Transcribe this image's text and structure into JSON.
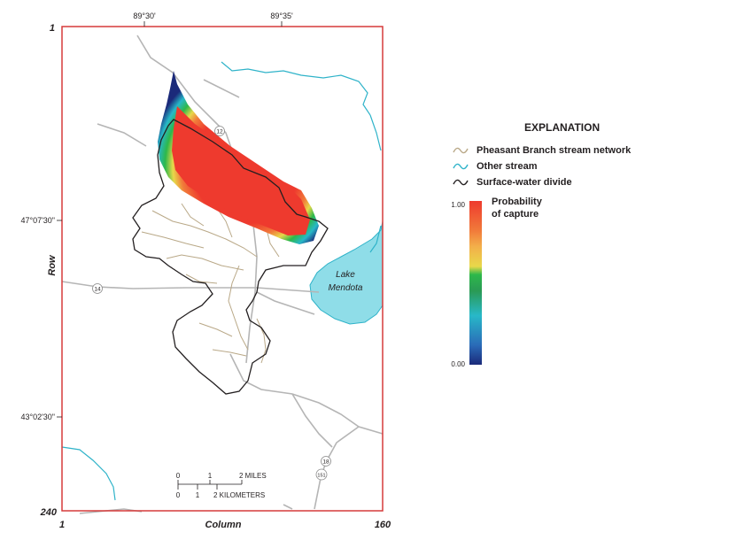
{
  "map": {
    "top_coords": [
      "89°30'",
      "89°35'"
    ],
    "left_coords": [
      "47°07'30\"",
      "43°02'30\""
    ],
    "row_label": "Row",
    "column_label": "Column",
    "row_start": "1",
    "row_end": "240",
    "col_start": "1",
    "col_end": "160",
    "lake_name_line1": "Lake",
    "lake_name_line2": "Mendota",
    "route_labels": [
      "12",
      "14",
      "18",
      "151"
    ],
    "scale": {
      "miles_ticks": [
        "0",
        "1",
        "2 MILES"
      ],
      "km_ticks": [
        "0",
        "1",
        "2 KILOMETERS"
      ]
    }
  },
  "legend": {
    "title": "EXPLANATION",
    "items": [
      {
        "label": "Pheasant Branch stream network",
        "color": "#b9a887"
      },
      {
        "label": "Other stream",
        "color": "#2fb3c9"
      },
      {
        "label": "Surface-water divide",
        "color": "#231f20"
      }
    ],
    "colorbar_title_line1": "Probability",
    "colorbar_title_line2": "of capture",
    "colorbar_max": "1.00",
    "colorbar_min": "0.00",
    "colorbar_stops": [
      "#1b2a7a",
      "#2a6bb8",
      "#28b8c8",
      "#2a9a55",
      "#2db84a",
      "#e8d84a",
      "#f3b04a",
      "#f17a3a",
      "#ee3a2e"
    ]
  },
  "colors": {
    "frame": "#d63a3a",
    "road": "#b5b5b5",
    "lake": "#8fdde8",
    "stream_other": "#2fb3c9",
    "stream_pheasant": "#b9a887",
    "divide": "#231f20"
  }
}
